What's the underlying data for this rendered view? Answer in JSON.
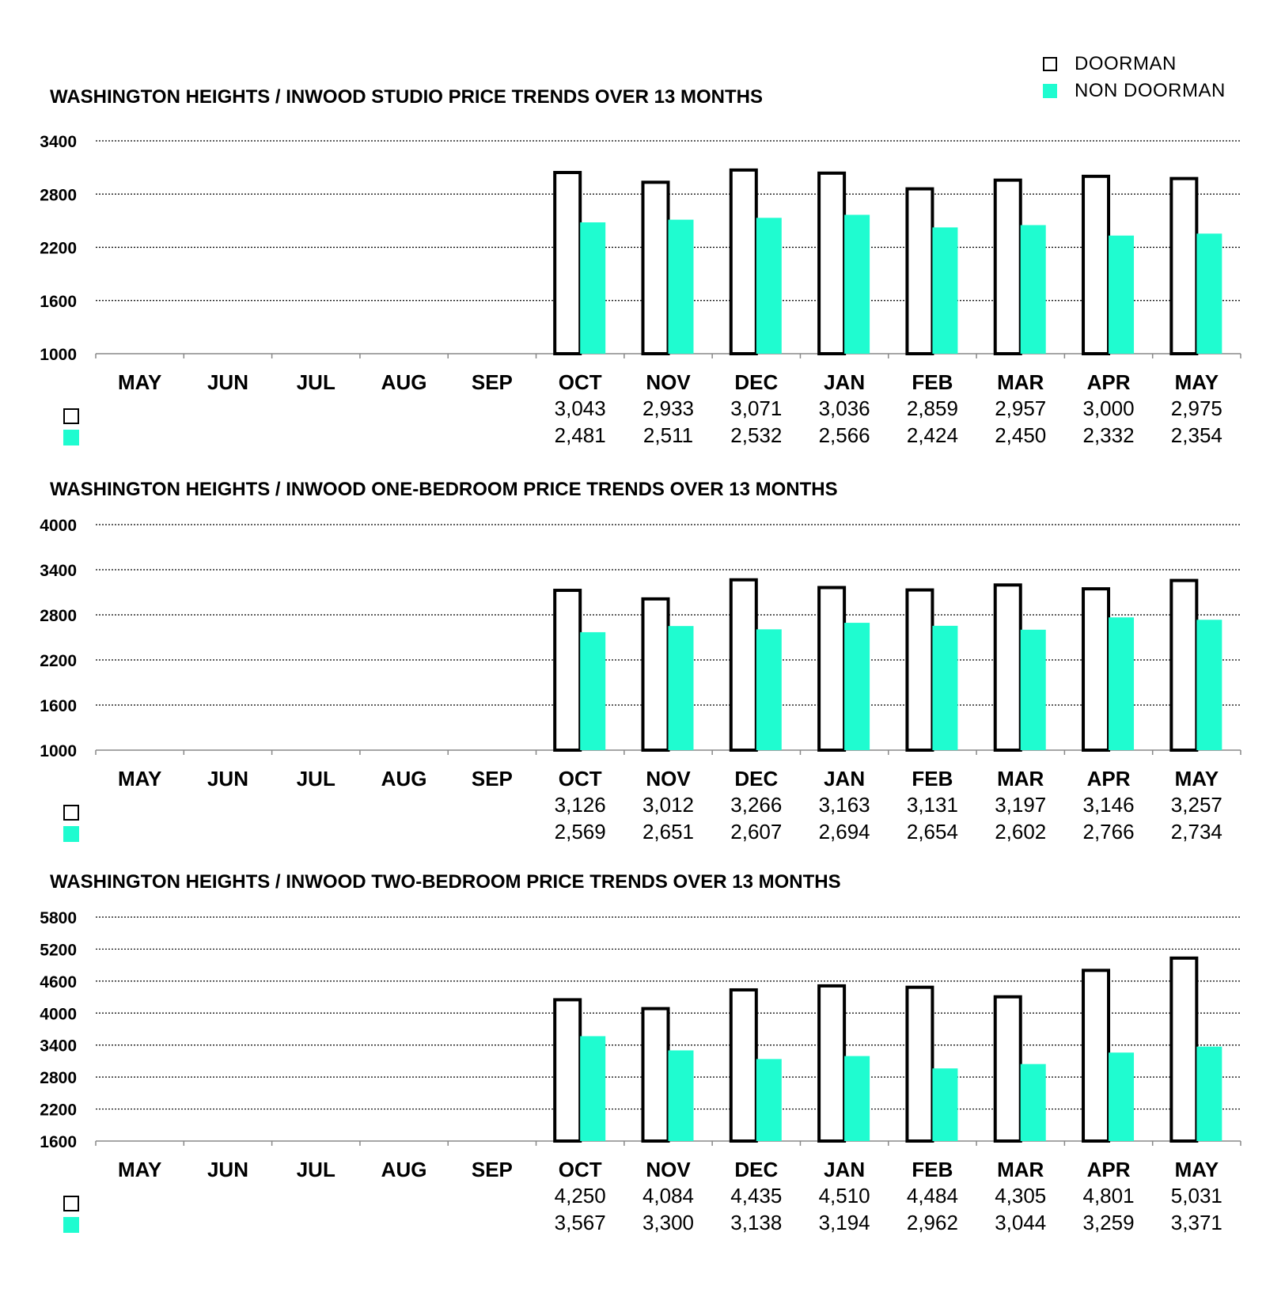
{
  "legend": {
    "items": [
      {
        "label": "DOORMAN",
        "color": "#ffffff",
        "stroke": "#000000"
      },
      {
        "label": "NON DOORMAN",
        "color": "#1ffcd0"
      }
    ]
  },
  "colors": {
    "doorman_fill": "#ffffff",
    "doorman_stroke": "#000000",
    "non_doorman_fill": "#1ffcd0",
    "grid": "#000000"
  },
  "chart_data": [
    {
      "type": "bar",
      "title": "WASHINGTON HEIGHTS / INWOOD STUDIO PRICE TRENDS OVER 13 MONTHS",
      "categories": [
        "MAY",
        "JUN",
        "JUL",
        "AUG",
        "SEP",
        "OCT",
        "NOV",
        "DEC",
        "JAN",
        "FEB",
        "MAR",
        "APR",
        "MAY"
      ],
      "ylim": [
        1000,
        3400
      ],
      "yticks": [
        3400,
        2800,
        2200,
        1600,
        1000
      ],
      "grid": true,
      "series": [
        {
          "name": "DOORMAN",
          "values": [
            null,
            null,
            null,
            null,
            null,
            3043,
            2933,
            3071,
            3036,
            2859,
            2957,
            3000,
            2975
          ],
          "labels": [
            "",
            "",
            "",
            "",
            "",
            "3,043",
            "2,933",
            "3,071",
            "3,036",
            "2,859",
            "2,957",
            "3,000",
            "2,975"
          ]
        },
        {
          "name": "NON DOORMAN",
          "values": [
            null,
            null,
            null,
            null,
            null,
            2481,
            2511,
            2532,
            2566,
            2424,
            2450,
            2332,
            2354
          ],
          "labels": [
            "",
            "",
            "",
            "",
            "",
            "2,481",
            "2,511",
            "2,532",
            "2,566",
            "2,424",
            "2,450",
            "2,332",
            "2,354"
          ]
        }
      ]
    },
    {
      "type": "bar",
      "title": "WASHINGTON HEIGHTS / INWOOD ONE-BEDROOM PRICE TRENDS OVER 13 MONTHS",
      "categories": [
        "MAY",
        "JUN",
        "JUL",
        "AUG",
        "SEP",
        "OCT",
        "NOV",
        "DEC",
        "JAN",
        "FEB",
        "MAR",
        "APR",
        "MAY"
      ],
      "ylim": [
        1000,
        4000
      ],
      "yticks": [
        4000,
        3400,
        2800,
        2200,
        1600,
        1000
      ],
      "grid": true,
      "series": [
        {
          "name": "DOORMAN",
          "values": [
            null,
            null,
            null,
            null,
            null,
            3126,
            3012,
            3266,
            3163,
            3131,
            3197,
            3146,
            3257
          ],
          "labels": [
            "",
            "",
            "",
            "",
            "",
            "3,126",
            "3,012",
            "3,266",
            "3,163",
            "3,131",
            "3,197",
            "3,146",
            "3,257"
          ]
        },
        {
          "name": "NON DOORMAN",
          "values": [
            null,
            null,
            null,
            null,
            null,
            2569,
            2651,
            2607,
            2694,
            2654,
            2602,
            2766,
            2734
          ],
          "labels": [
            "",
            "",
            "",
            "",
            "",
            "2,569",
            "2,651",
            "2,607",
            "2,694",
            "2,654",
            "2,602",
            "2,766",
            "2,734"
          ]
        }
      ]
    },
    {
      "type": "bar",
      "title": "WASHINGTON HEIGHTS / INWOOD TWO-BEDROOM PRICE TRENDS OVER 13 MONTHS",
      "categories": [
        "MAY",
        "JUN",
        "JUL",
        "AUG",
        "SEP",
        "OCT",
        "NOV",
        "DEC",
        "JAN",
        "FEB",
        "MAR",
        "APR",
        "MAY"
      ],
      "ylim": [
        1600,
        5800
      ],
      "yticks": [
        5800,
        5200,
        4600,
        4000,
        3400,
        2800,
        2200,
        1600
      ],
      "grid": true,
      "series": [
        {
          "name": "DOORMAN",
          "values": [
            null,
            null,
            null,
            null,
            null,
            4250,
            4084,
            4435,
            4510,
            4484,
            4305,
            4801,
            5031
          ],
          "labels": [
            "",
            "",
            "",
            "",
            "",
            "4,250",
            "4,084",
            "4,435",
            "4,510",
            "4,484",
            "4,305",
            "4,801",
            "5,031"
          ]
        },
        {
          "name": "NON DOORMAN",
          "values": [
            null,
            null,
            null,
            null,
            null,
            3567,
            3300,
            3138,
            3194,
            2962,
            3044,
            3259,
            3371
          ],
          "labels": [
            "",
            "",
            "",
            "",
            "",
            "3,567",
            "3,300",
            "3,138",
            "3,194",
            "2,962",
            "3,044",
            "3,259",
            "3,371"
          ]
        }
      ]
    }
  ]
}
